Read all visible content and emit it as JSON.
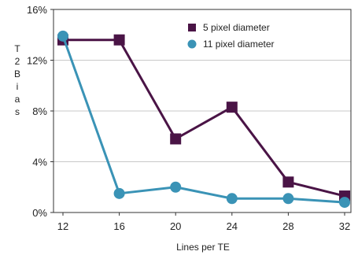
{
  "chart_data": {
    "type": "line",
    "title": "",
    "xlabel": "Lines per TE",
    "ylabel": "T2 Bias",
    "x": [
      12,
      16,
      20,
      24,
      28,
      32
    ],
    "x_tick_labels": [
      "12",
      "16",
      "20",
      "24",
      "28",
      "32"
    ],
    "ylim": [
      0,
      16
    ],
    "y_tick_labels": [
      "0%",
      "4%",
      "8%",
      "12%",
      "16%"
    ],
    "y_ticks": [
      0,
      4,
      8,
      12,
      16
    ],
    "grid": "horizontal",
    "legend_position": "top-right",
    "series": [
      {
        "name": "5 pixel diameter",
        "marker": "square",
        "color": "#4a1446",
        "values": [
          13.6,
          13.6,
          5.8,
          8.3,
          2.4,
          1.3
        ]
      },
      {
        "name": "11 pixel diameter",
        "marker": "circle",
        "color": "#3a93b6",
        "values": [
          13.9,
          1.5,
          2.0,
          1.1,
          1.1,
          0.8
        ]
      }
    ]
  }
}
